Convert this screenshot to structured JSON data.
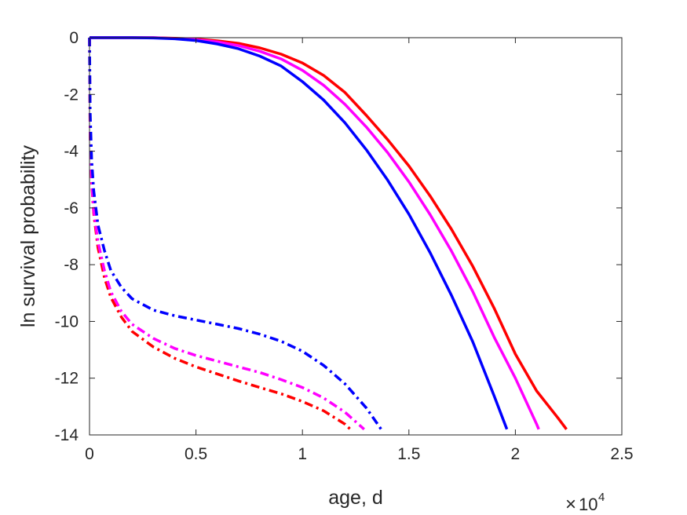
{
  "chart_data": {
    "type": "line",
    "title": "",
    "xlabel": "age, d",
    "ylabel": "ln survival probability",
    "xlim": [
      0,
      25000
    ],
    "ylim": [
      -14,
      0
    ],
    "x_exponent_label": "10",
    "x_exponent_power": "4",
    "x_ticks": [
      0,
      5000,
      10000,
      15000,
      20000,
      25000
    ],
    "x_tick_labels": [
      "0",
      "0.5",
      "1",
      "1.5",
      "2",
      "2.5"
    ],
    "y_ticks": [
      0,
      -2,
      -4,
      -6,
      -8,
      -10,
      -12,
      -14
    ],
    "y_tick_labels": [
      "0",
      "-2",
      "-4",
      "-6",
      "-8",
      "-10",
      "-12",
      "-14"
    ],
    "grid": false,
    "series": [
      {
        "color": "#ff0000",
        "style": "solid",
        "x": [
          0,
          1000,
          2000,
          3000,
          4000,
          5000,
          6000,
          7000,
          8000,
          9000,
          10000,
          11000,
          12000,
          13000,
          14000,
          15000,
          16000,
          17000,
          18000,
          19000,
          20000,
          21000,
          22000,
          22400
        ],
        "y": [
          0,
          0,
          0,
          0,
          -0.02,
          -0.05,
          -0.11,
          -0.2,
          -0.36,
          -0.58,
          -0.89,
          -1.33,
          -1.93,
          -2.74,
          -3.59,
          -4.52,
          -5.58,
          -6.75,
          -8.06,
          -9.53,
          -11.15,
          -12.45,
          -13.4,
          -13.8
        ]
      },
      {
        "color": "#ff00ff",
        "style": "solid",
        "x": [
          0,
          1000,
          2000,
          3000,
          4000,
          5000,
          6000,
          7000,
          8000,
          9000,
          10000,
          11000,
          12000,
          13000,
          14000,
          15000,
          16000,
          17000,
          18000,
          19000,
          20000,
          21000,
          21100
        ],
        "y": [
          0,
          0,
          0,
          0,
          -0.03,
          -0.07,
          -0.15,
          -0.28,
          -0.48,
          -0.75,
          -1.15,
          -1.68,
          -2.35,
          -3.15,
          -4.05,
          -5.08,
          -6.24,
          -7.52,
          -8.95,
          -10.55,
          -12.0,
          -13.62,
          -13.8
        ]
      },
      {
        "color": "#0000ff",
        "style": "solid",
        "x": [
          0,
          1000,
          2000,
          3000,
          4000,
          5000,
          6000,
          7000,
          8000,
          9000,
          10000,
          11000,
          12000,
          13000,
          14000,
          15000,
          16000,
          17000,
          18000,
          19000,
          19600
        ],
        "y": [
          0,
          0,
          0,
          -0.01,
          -0.04,
          -0.1,
          -0.22,
          -0.39,
          -0.65,
          -1.0,
          -1.55,
          -2.2,
          -3.0,
          -3.95,
          -5.02,
          -6.22,
          -7.58,
          -9.08,
          -10.72,
          -12.62,
          -13.8
        ]
      },
      {
        "color": "#ff0000",
        "style": "dashdot",
        "x": [
          0,
          30,
          100,
          200,
          400,
          700,
          1000,
          1500,
          2000,
          3000,
          4000,
          5000,
          6000,
          7000,
          8000,
          9000,
          10000,
          11000,
          12000,
          12250
        ],
        "y": [
          0,
          -3.5,
          -5.1,
          -6.2,
          -7.4,
          -8.45,
          -9.15,
          -9.85,
          -10.35,
          -10.9,
          -11.3,
          -11.6,
          -11.85,
          -12.1,
          -12.33,
          -12.55,
          -12.82,
          -13.15,
          -13.62,
          -13.8
        ]
      },
      {
        "color": "#ff00ff",
        "style": "dashdot",
        "x": [
          0,
          30,
          100,
          200,
          400,
          700,
          1000,
          1500,
          2000,
          3000,
          4000,
          5000,
          6000,
          7000,
          8000,
          9000,
          10000,
          11000,
          12000,
          12900
        ],
        "y": [
          0,
          -3.4,
          -5.0,
          -6.1,
          -7.2,
          -8.2,
          -8.95,
          -9.65,
          -10.1,
          -10.6,
          -10.95,
          -11.2,
          -11.4,
          -11.6,
          -11.8,
          -12.05,
          -12.33,
          -12.7,
          -13.2,
          -13.8
        ]
      },
      {
        "color": "#0000ff",
        "style": "dashdot",
        "x": [
          0,
          30,
          100,
          200,
          400,
          700,
          1000,
          1500,
          2000,
          3000,
          4000,
          5000,
          6000,
          7000,
          8000,
          9000,
          10000,
          11000,
          12000,
          13000,
          13700
        ],
        "y": [
          0,
          -2.6,
          -4.3,
          -5.4,
          -6.6,
          -7.5,
          -8.2,
          -8.8,
          -9.2,
          -9.6,
          -9.8,
          -9.95,
          -10.1,
          -10.25,
          -10.45,
          -10.7,
          -11.05,
          -11.55,
          -12.2,
          -13.05,
          -13.8
        ]
      }
    ]
  }
}
